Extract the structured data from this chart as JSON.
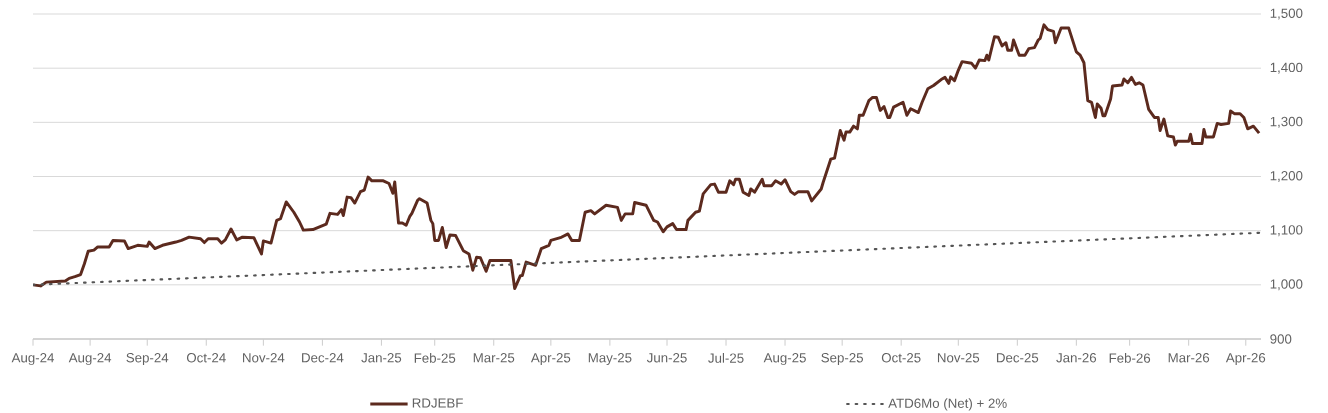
{
  "chart_data": {
    "type": "line",
    "xlim": [
      "2024-08-01",
      "2026-05-08"
    ],
    "xticks": [
      {
        "value": "2024-08-01",
        "label": "Aug-24"
      },
      {
        "value": "2024-08-31",
        "label": "Aug-24"
      },
      {
        "value": "2024-09-30",
        "label": "Sep-24"
      },
      {
        "value": "2024-10-31",
        "label": "Oct-24"
      },
      {
        "value": "2024-11-30",
        "label": "Nov-24"
      },
      {
        "value": "2024-12-31",
        "label": "Dec-24"
      },
      {
        "value": "2025-01-31",
        "label": "Jan-25"
      },
      {
        "value": "2025-02-28",
        "label": "Feb-25"
      },
      {
        "value": "2025-03-31",
        "label": "Mar-25"
      },
      {
        "value": "2025-04-30",
        "label": "Apr-25"
      },
      {
        "value": "2025-05-31",
        "label": "May-25"
      },
      {
        "value": "2025-06-30",
        "label": "Jun-25"
      },
      {
        "value": "2025-07-31",
        "label": "Jul-25"
      },
      {
        "value": "2025-08-31",
        "label": "Aug-25"
      },
      {
        "value": "2025-09-30",
        "label": "Sep-25"
      },
      {
        "value": "2025-10-31",
        "label": "Oct-25"
      },
      {
        "value": "2025-11-30",
        "label": "Nov-25"
      },
      {
        "value": "2025-12-31",
        "label": "Dec-25"
      },
      {
        "value": "2026-01-31",
        "label": "Jan-26"
      },
      {
        "value": "2026-02-28",
        "label": "Feb-26"
      },
      {
        "value": "2026-03-31",
        "label": "Mar-26"
      },
      {
        "value": "2026-04-30",
        "label": "Apr-26"
      }
    ],
    "ylim": [
      900,
      1500
    ],
    "yticks": [
      900,
      {
        "value": 1000,
        "label": "1,000"
      },
      {
        "value": 1100,
        "label": "1,100"
      },
      {
        "value": 1200,
        "label": "1,200"
      },
      {
        "value": 1300,
        "label": "1,300"
      },
      {
        "value": 1400,
        "label": "1,400"
      },
      {
        "value": 1500,
        "label": "1,500"
      }
    ],
    "grid": "y",
    "legend": "bottom",
    "series": [
      {
        "name": "RDJEBF",
        "color": "#5c2a1e",
        "line_style": "solid",
        "x": [
          "2024-08-01",
          "2024-08-05",
          "2024-08-08",
          "2024-08-18",
          "2024-08-20",
          "2024-08-23",
          "2024-08-26",
          "2024-08-28",
          "2024-08-30",
          "2024-09-02",
          "2024-09-04",
          "2024-09-10",
          "2024-09-12",
          "2024-09-18",
          "2024-09-20",
          "2024-09-25",
          "2024-09-30",
          "2024-10-01",
          "2024-10-04",
          "2024-10-08",
          "2024-10-15",
          "2024-10-18",
          "2024-10-22",
          "2024-10-28",
          "2024-10-30",
          "2024-11-01",
          "2024-11-06",
          "2024-11-08",
          "2024-11-10",
          "2024-11-13",
          "2024-11-16",
          "2024-11-19",
          "2024-11-25",
          "2024-11-29",
          "2024-11-30",
          "2024-12-04",
          "2024-12-07",
          "2024-12-09",
          "2024-12-12",
          "2024-12-16",
          "2024-12-19",
          "2024-12-21",
          "2024-12-26",
          "2025-01-02",
          "2025-01-04",
          "2025-01-08",
          "2025-01-10",
          "2025-01-11",
          "2025-01-13",
          "2025-01-15",
          "2025-01-17",
          "2025-01-20",
          "2025-01-22",
          "2025-01-24",
          "2025-01-26",
          "2025-02-01",
          "2025-02-04",
          "2025-02-06",
          "2025-02-07",
          "2025-02-09",
          "2025-02-11",
          "2025-02-13",
          "2025-02-15",
          "2025-02-16",
          "2025-02-19",
          "2025-02-20",
          "2025-02-24",
          "2025-02-26",
          "2025-02-27",
          "2025-02-28",
          "2025-03-02",
          "2025-03-04",
          "2025-03-06",
          "2025-03-08",
          "2025-03-11",
          "2025-03-15",
          "2025-03-18",
          "2025-03-20",
          "2025-03-22",
          "2025-03-24",
          "2025-03-27",
          "2025-03-29",
          "2025-04-09",
          "2025-04-11",
          "2025-04-14",
          "2025-04-15",
          "2025-04-17",
          "2025-04-22",
          "2025-04-25",
          "2025-04-29",
          "2025-04-30",
          "2025-05-05",
          "2025-05-09",
          "2025-05-11",
          "2025-05-15",
          "2025-05-18",
          "2025-05-21",
          "2025-05-23",
          "2025-05-29",
          "2025-06-04",
          "2025-06-06",
          "2025-06-08",
          "2025-06-12",
          "2025-06-13",
          "2025-06-19",
          "2025-06-23",
          "2025-06-25",
          "2025-06-28",
          "2025-06-30",
          "2025-07-03",
          "2025-07-05",
          "2025-07-10",
          "2025-07-11",
          "2025-07-15",
          "2025-07-17",
          "2025-07-19",
          "2025-07-23",
          "2025-07-25",
          "2025-07-27",
          "2025-07-31",
          "2025-08-02",
          "2025-08-04",
          "2025-08-05",
          "2025-08-07",
          "2025-08-09",
          "2025-08-12",
          "2025-08-13",
          "2025-08-15",
          "2025-08-19",
          "2025-08-20",
          "2025-08-24",
          "2025-08-26",
          "2025-08-29",
          "2025-08-31",
          "2025-09-03",
          "2025-09-05",
          "2025-09-07",
          "2025-09-12",
          "2025-09-14",
          "2025-09-19",
          "2025-09-20",
          "2025-09-24",
          "2025-09-26",
          "2025-09-29",
          "2025-10-01",
          "2025-10-02",
          "2025-10-04",
          "2025-10-06",
          "2025-10-08",
          "2025-10-09",
          "2025-10-11",
          "2025-10-14",
          "2025-10-16",
          "2025-10-18",
          "2025-10-20",
          "2025-10-22",
          "2025-10-24",
          "2025-10-25",
          "2025-10-27",
          "2025-11-01",
          "2025-11-03",
          "2025-11-05",
          "2025-11-09",
          "2025-11-11",
          "2025-11-14",
          "2025-11-17",
          "2025-11-21",
          "2025-11-23",
          "2025-11-25",
          "2025-11-26",
          "2025-11-28",
          "2025-11-30",
          "2025-12-02",
          "2025-12-07",
          "2025-12-09",
          "2025-12-11",
          "2025-12-14",
          "2025-12-15",
          "2025-12-16",
          "2025-12-19",
          "2025-12-21",
          "2025-12-23",
          "2025-12-25",
          "2025-12-26",
          "2025-12-28",
          "2025-12-29",
          "2026-01-01",
          "2026-01-04",
          "2026-01-06",
          "2026-01-09",
          "2026-01-11",
          "2026-01-12",
          "2026-01-14",
          "2026-01-16",
          "2026-01-19",
          "2026-01-20",
          "2026-01-23",
          "2026-01-27",
          "2026-01-31",
          "2026-02-02",
          "2026-02-04",
          "2026-02-06",
          "2026-02-08",
          "2026-02-10",
          "2026-02-11",
          "2026-02-13",
          "2026-02-14",
          "2026-02-15",
          "2026-02-18",
          "2026-02-19",
          "2026-02-24",
          "2026-02-25",
          "2026-02-27",
          "2026-03-01",
          "2026-03-03",
          "2026-03-05",
          "2026-03-07",
          "2026-03-10",
          "2026-03-13",
          "2026-03-15",
          "2026-03-16",
          "2026-03-18",
          "2026-03-20",
          "2026-03-23",
          "2026-03-24",
          "2026-03-25",
          "2026-03-31",
          "2026-04-01",
          "2026-04-02",
          "2026-04-07",
          "2026-04-08",
          "2026-04-09",
          "2026-04-13",
          "2026-04-15",
          "2026-04-17",
          "2026-04-21",
          "2026-04-22",
          "2026-04-24",
          "2026-04-27",
          "2026-04-29",
          "2026-05-01",
          "2026-05-04",
          "2026-05-07"
        ],
        "values": [
          1000,
          998,
          1005,
          1007,
          1012,
          1015,
          1019,
          1039,
          1062,
          1064,
          1070,
          1070,
          1082,
          1081,
          1067,
          1073,
          1071,
          1079,
          1067,
          1073,
          1079,
          1082,
          1088,
          1085,
          1078,
          1085,
          1085,
          1077,
          1083,
          1103,
          1083,
          1088,
          1087,
          1057,
          1081,
          1077,
          1119,
          1122,
          1153,
          1134,
          1116,
          1101,
          1102,
          1112,
          1132,
          1130,
          1139,
          1128,
          1162,
          1161,
          1151,
          1172,
          1175,
          1199,
          1192,
          1192,
          1187,
          1169,
          1190,
          1114,
          1114,
          1110,
          1127,
          1132,
          1156,
          1159,
          1151,
          1119,
          1113,
          1082,
          1082,
          1106,
          1069,
          1092,
          1091,
          1063,
          1057,
          1027,
          1051,
          1050,
          1025,
          1045,
          1045,
          993,
          1017,
          1017,
          1042,
          1036,
          1067,
          1073,
          1082,
          1087,
          1094,
          1082,
          1082,
          1134,
          1137,
          1131,
          1147,
          1143,
          1119,
          1131,
          1131,
          1152,
          1147,
          1119,
          1116,
          1098,
          1107,
          1113,
          1102,
          1102,
          1119,
          1134,
          1136,
          1168,
          1185,
          1186,
          1171,
          1171,
          1192,
          1185,
          1195,
          1195,
          1171,
          1165,
          1177,
          1171,
          1195,
          1183,
          1183,
          1192,
          1186,
          1194,
          1172,
          1167,
          1172,
          1172,
          1155,
          1177,
          1189,
          1232,
          1234,
          1285,
          1267,
          1282,
          1282,
          1293,
          1288,
          1313,
          1313,
          1340,
          1346,
          1346,
          1322,
          1329,
          1309,
          1309,
          1328,
          1337,
          1313,
          1325,
          1318,
          1337,
          1362,
          1368,
          1379,
          1383,
          1372,
          1384,
          1377,
          1396,
          1412,
          1409,
          1400,
          1415,
          1414,
          1424,
          1415,
          1458,
          1457,
          1441,
          1447,
          1433,
          1433,
          1452,
          1424,
          1424,
          1436,
          1438,
          1452,
          1455,
          1480,
          1471,
          1468,
          1447,
          1474,
          1474,
          1430,
          1424,
          1410,
          1340,
          1337,
          1309,
          1334,
          1326,
          1312,
          1312,
          1343,
          1367,
          1369,
          1380,
          1373,
          1383,
          1370,
          1373,
          1369,
          1324,
          1309,
          1309,
          1285,
          1306,
          1275,
          1273,
          1258,
          1265,
          1265,
          1278,
          1261,
          1261,
          1287,
          1273,
          1273,
          1298,
          1296,
          1298,
          1321,
          1316,
          1316,
          1309,
          1288,
          1293,
          1280
        ]
      },
      {
        "name": "ATD6Mo (Net) + 2%",
        "color": "#555555",
        "line_style": "dotted",
        "x": [
          "2024-08-01",
          "2026-05-07"
        ],
        "values": [
          1000,
          1096
        ]
      }
    ]
  }
}
